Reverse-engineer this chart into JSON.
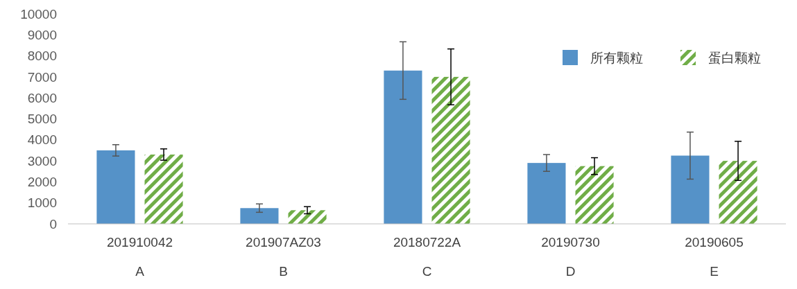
{
  "chart_data": {
    "type": "bar",
    "categories": [
      "201910042\nA",
      "201907AZ03\nB",
      "20180722A\nC",
      "20190730\nD",
      "20190605\nE"
    ],
    "series": [
      {
        "name": "所有颗粒",
        "color": "#5592c8",
        "values": [
          3500,
          750,
          7300,
          2900,
          3250
        ],
        "errors": [
          270,
          200,
          1370,
          400,
          1120
        ]
      },
      {
        "name": "蛋白颗粒",
        "color": "#70ad47",
        "values": [
          3300,
          650,
          7000,
          2750,
          3000
        ],
        "errors": [
          270,
          170,
          1330,
          400,
          930
        ]
      }
    ],
    "ylim": [
      0,
      10000
    ],
    "yticks": [
      0,
      1000,
      2000,
      3000,
      4000,
      5000,
      6000,
      7000,
      8000,
      9000,
      10000
    ],
    "legend": "top right"
  }
}
